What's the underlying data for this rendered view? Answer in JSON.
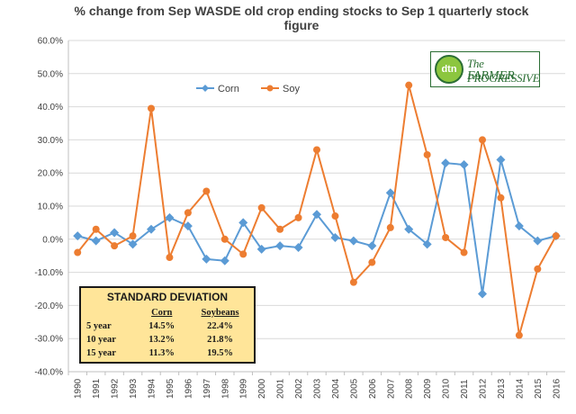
{
  "chart_data": {
    "type": "line",
    "title_line1": "%  change from Sep WASDE old crop ending stocks to Sep 1 quarterly stock",
    "title_line2": "figure",
    "categories": [
      "1990",
      "1991",
      "1992",
      "1993",
      "1994",
      "1995",
      "1996",
      "1997",
      "1998",
      "1999",
      "2000",
      "2001",
      "2002",
      "2003",
      "2004",
      "2005",
      "2006",
      "2007",
      "2008",
      "2009",
      "2010",
      "2011",
      "2012",
      "2013",
      "2014",
      "2015",
      "2016"
    ],
    "series": [
      {
        "name": "Corn",
        "color": "#5b9bd5",
        "marker": "diamond",
        "values": [
          1.0,
          -0.5,
          2.0,
          -1.5,
          3.0,
          6.5,
          4.0,
          -6.0,
          -6.5,
          5.0,
          -3.0,
          -2.0,
          -2.5,
          7.5,
          0.5,
          -0.5,
          -2.0,
          14.0,
          3.0,
          -1.5,
          23.0,
          22.5,
          -16.5,
          24.0,
          4.0,
          -0.5,
          1.0
        ]
      },
      {
        "name": "Soy",
        "color": "#ed7d31",
        "marker": "circle",
        "values": [
          -4.0,
          3.0,
          -2.0,
          1.0,
          39.5,
          -5.5,
          8.0,
          14.5,
          0.0,
          -4.5,
          9.5,
          3.0,
          6.5,
          27.0,
          7.0,
          -13.0,
          -7.0,
          3.5,
          46.5,
          25.5,
          0.5,
          -4.0,
          30.0,
          12.5,
          -29.0,
          -9.0,
          1.0
        ]
      }
    ],
    "y_ticks": [
      "60.0%",
      "50.0%",
      "40.0%",
      "30.0%",
      "20.0%",
      "10.0%",
      "0.0%",
      "-10.0%",
      "-20.0%",
      "-30.0%",
      "-40.0%"
    ],
    "ylim": [
      -40,
      60
    ],
    "grid": true,
    "legend": "top-center",
    "annotation": {
      "title": "STANDARD DEVIATION",
      "headers": [
        "",
        "Corn",
        "Soybeans"
      ],
      "rows": [
        {
          "label": "5 year",
          "corn": "14.5%",
          "soy": "22.4%"
        },
        {
          "label": "10 year",
          "corn": "13.2%",
          "soy": "21.8%"
        },
        {
          "label": "15 year",
          "corn": "11.3%",
          "soy": "19.5%"
        }
      ]
    },
    "logo": {
      "badge": "dtn",
      "line1": "The PROGRESSIVE",
      "line2": "FARMER"
    }
  }
}
